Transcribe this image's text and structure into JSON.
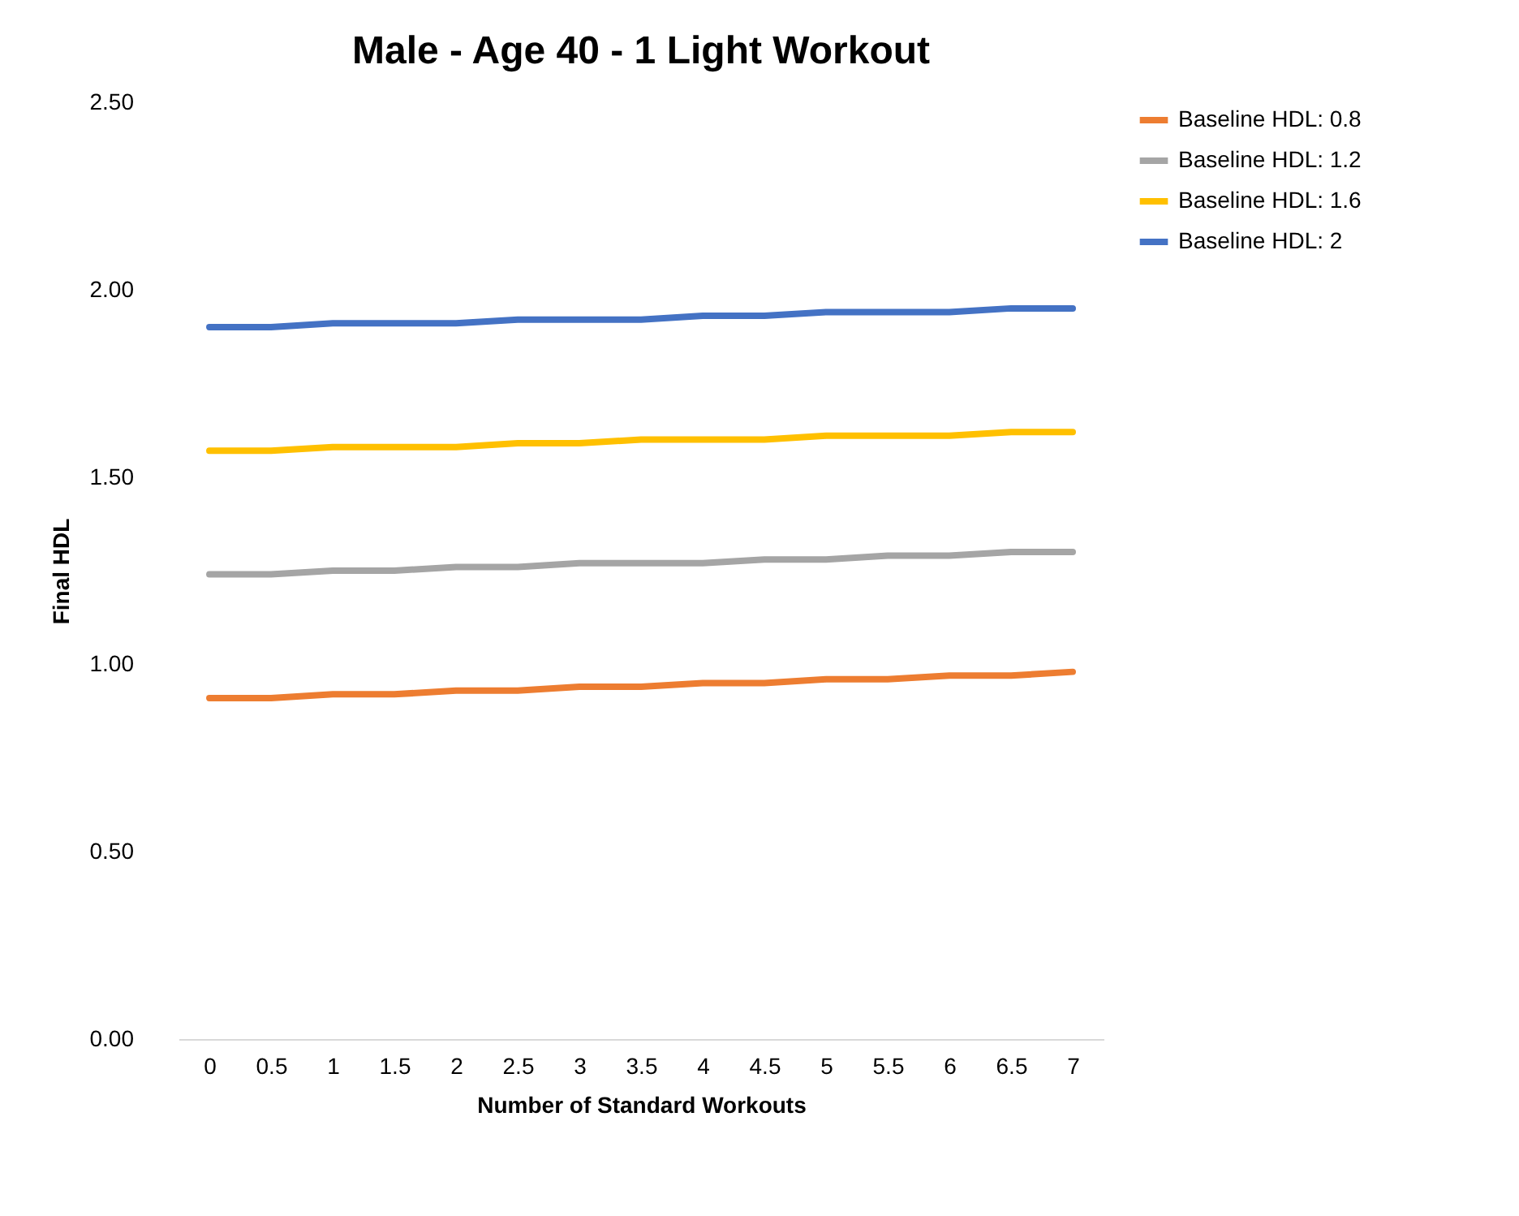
{
  "chart_data": {
    "type": "line",
    "title": "Male - Age 40 - 1 Light Workout",
    "xlabel": "Number of Standard Workouts",
    "ylabel": "Final HDL",
    "categories": [
      "0",
      "0.5",
      "1",
      "1.5",
      "2",
      "2.5",
      "3",
      "3.5",
      "4",
      "4.5",
      "5",
      "5.5",
      "6",
      "6.5",
      "7"
    ],
    "series": [
      {
        "name": "Baseline HDL: 0.8",
        "color": "#ed7d31",
        "values": [
          0.91,
          0.91,
          0.92,
          0.92,
          0.93,
          0.93,
          0.94,
          0.94,
          0.95,
          0.95,
          0.96,
          0.96,
          0.97,
          0.97,
          0.98
        ]
      },
      {
        "name": "Baseline HDL: 1.2",
        "color": "#a5a5a5",
        "values": [
          1.24,
          1.24,
          1.25,
          1.25,
          1.26,
          1.26,
          1.27,
          1.27,
          1.27,
          1.28,
          1.28,
          1.29,
          1.29,
          1.3,
          1.3
        ]
      },
      {
        "name": "Baseline HDL: 1.6",
        "color": "#ffc000",
        "values": [
          1.57,
          1.57,
          1.58,
          1.58,
          1.58,
          1.59,
          1.59,
          1.6,
          1.6,
          1.6,
          1.61,
          1.61,
          1.61,
          1.62,
          1.62
        ]
      },
      {
        "name": "Baseline HDL: 2",
        "color": "#4472c4",
        "values": [
          1.9,
          1.9,
          1.91,
          1.91,
          1.91,
          1.92,
          1.92,
          1.92,
          1.93,
          1.93,
          1.94,
          1.94,
          1.94,
          1.95,
          1.95
        ]
      }
    ],
    "ylim": [
      0,
      2.5
    ],
    "yticks": [
      {
        "value": 0,
        "label": "0.00"
      },
      {
        "value": 0.5,
        "label": "0.50"
      },
      {
        "value": 1,
        "label": "1.00"
      },
      {
        "value": 1.5,
        "label": "1.50"
      },
      {
        "value": 2,
        "label": "2.00"
      },
      {
        "value": 2.5,
        "label": "2.50"
      }
    ],
    "grid": false,
    "legend": "right",
    "marker": "none",
    "line_style": "solid"
  }
}
